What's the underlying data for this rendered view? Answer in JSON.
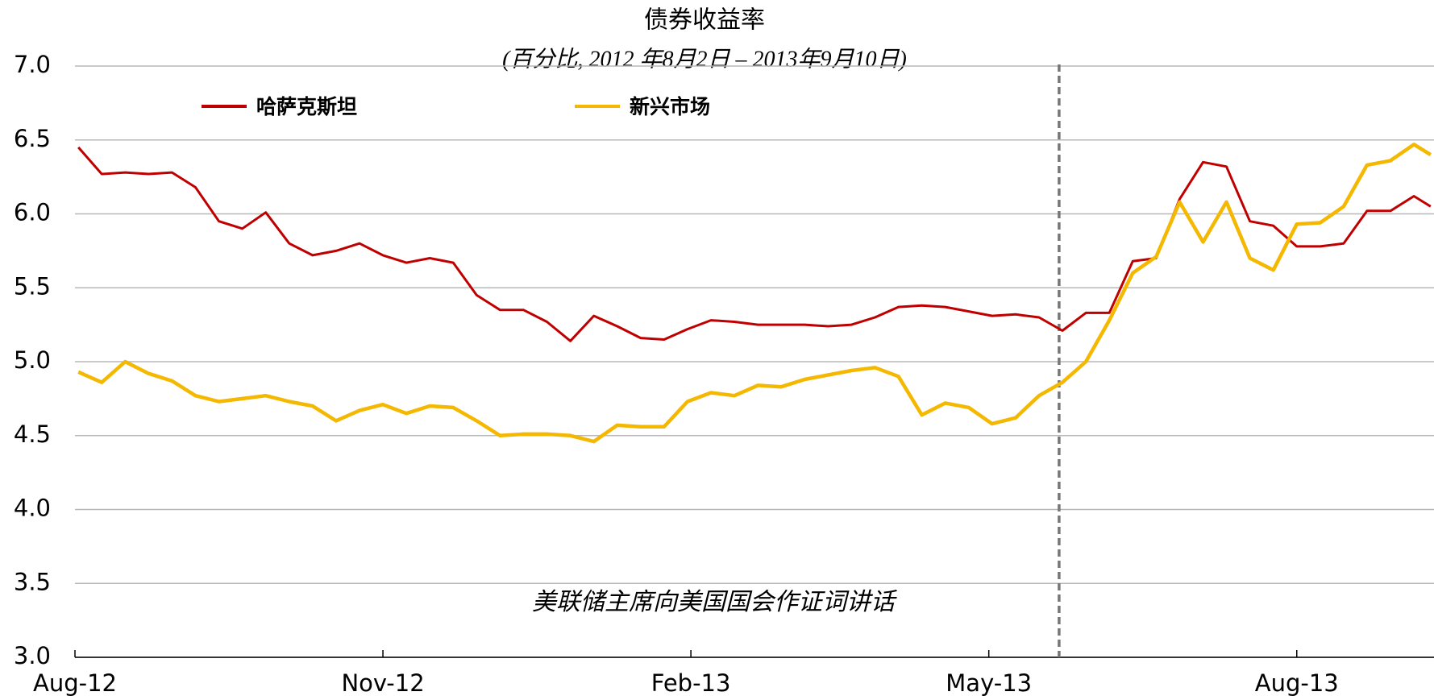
{
  "chart_data": {
    "type": "line",
    "title": "债券收益率",
    "subtitle": "(百分比, 2012 年8月2日 – 2013年9月10日)",
    "x": [
      "2012-08-02",
      "2012-08-09",
      "2012-08-16",
      "2012-08-23",
      "2012-08-30",
      "2012-09-06",
      "2012-09-13",
      "2012-09-20",
      "2012-09-27",
      "2012-10-04",
      "2012-10-11",
      "2012-10-18",
      "2012-10-25",
      "2012-11-01",
      "2012-11-08",
      "2012-11-15",
      "2012-11-22",
      "2012-11-29",
      "2012-12-06",
      "2012-12-13",
      "2012-12-20",
      "2012-12-27",
      "2013-01-03",
      "2013-01-10",
      "2013-01-17",
      "2013-01-24",
      "2013-01-31",
      "2013-02-07",
      "2013-02-14",
      "2013-02-21",
      "2013-02-28",
      "2013-03-07",
      "2013-03-14",
      "2013-03-21",
      "2013-03-28",
      "2013-04-04",
      "2013-04-11",
      "2013-04-18",
      "2013-04-25",
      "2013-05-02",
      "2013-05-09",
      "2013-05-16",
      "2013-05-23",
      "2013-05-30",
      "2013-06-06",
      "2013-06-13",
      "2013-06-20",
      "2013-06-27",
      "2013-07-04",
      "2013-07-11",
      "2013-07-18",
      "2013-07-25",
      "2013-08-01",
      "2013-08-08",
      "2013-08-15",
      "2013-08-22",
      "2013-08-29",
      "2013-09-05",
      "2013-09-10"
    ],
    "series": [
      {
        "name": "哈萨克斯坦",
        "color": "#c00000",
        "values": [
          6.45,
          6.27,
          6.28,
          6.27,
          6.28,
          6.18,
          5.95,
          5.9,
          6.01,
          5.8,
          5.72,
          5.75,
          5.8,
          5.72,
          5.67,
          5.7,
          5.67,
          5.45,
          5.35,
          5.35,
          5.27,
          5.14,
          5.31,
          5.24,
          5.16,
          5.15,
          5.22,
          5.28,
          5.27,
          5.25,
          5.25,
          5.25,
          5.24,
          5.25,
          5.3,
          5.37,
          5.38,
          5.37,
          5.34,
          5.31,
          5.32,
          5.3,
          5.21,
          5.33,
          5.33,
          5.68,
          5.7,
          6.1,
          6.35,
          6.32,
          5.95,
          5.92,
          5.78,
          5.78,
          5.8,
          6.02,
          6.02,
          6.12,
          6.05
        ]
      },
      {
        "name": "新兴市场",
        "color": "#f5b800",
        "values": [
          4.93,
          4.86,
          5.0,
          4.92,
          4.87,
          4.77,
          4.73,
          4.75,
          4.77,
          4.73,
          4.7,
          4.6,
          4.67,
          4.71,
          4.65,
          4.7,
          4.69,
          4.6,
          4.5,
          4.51,
          4.51,
          4.5,
          4.46,
          4.57,
          4.56,
          4.56,
          4.73,
          4.79,
          4.77,
          4.84,
          4.83,
          4.88,
          4.91,
          4.94,
          4.96,
          4.9,
          4.64,
          4.72,
          4.69,
          4.58,
          4.62,
          4.77,
          4.86,
          5.0,
          5.28,
          5.6,
          5.71,
          6.08,
          5.81,
          6.08,
          5.7,
          5.62,
          5.93,
          5.94,
          6.05,
          6.33,
          6.36,
          6.47,
          6.4
        ]
      }
    ],
    "xlim": [
      "2012-08-01",
      "2013-09-11"
    ],
    "xticks": [
      {
        "value": "2012-08-01",
        "label": "Aug-12"
      },
      {
        "value": "2012-11-01",
        "label": "Nov-12"
      },
      {
        "value": "2013-02-01",
        "label": "Feb-13"
      },
      {
        "value": "2013-05-01",
        "label": "May-13"
      },
      {
        "value": "2013-08-01",
        "label": "Aug-13"
      }
    ],
    "ylim": [
      3,
      7
    ],
    "yticks": [
      {
        "value": 3,
        "label": "3.0"
      },
      3.5,
      {
        "value": 4,
        "label": "4.0"
      },
      4.5,
      {
        "value": 5,
        "label": "5.0"
      },
      5.5,
      {
        "value": 6,
        "label": "6.0"
      },
      6.5,
      {
        "value": 7,
        "label": "7.0"
      }
    ],
    "grid": true,
    "legend": "top-left",
    "annotation": {
      "text": "美联储主席向美国国会作证词讲话",
      "x": "2013-05-22"
    }
  }
}
